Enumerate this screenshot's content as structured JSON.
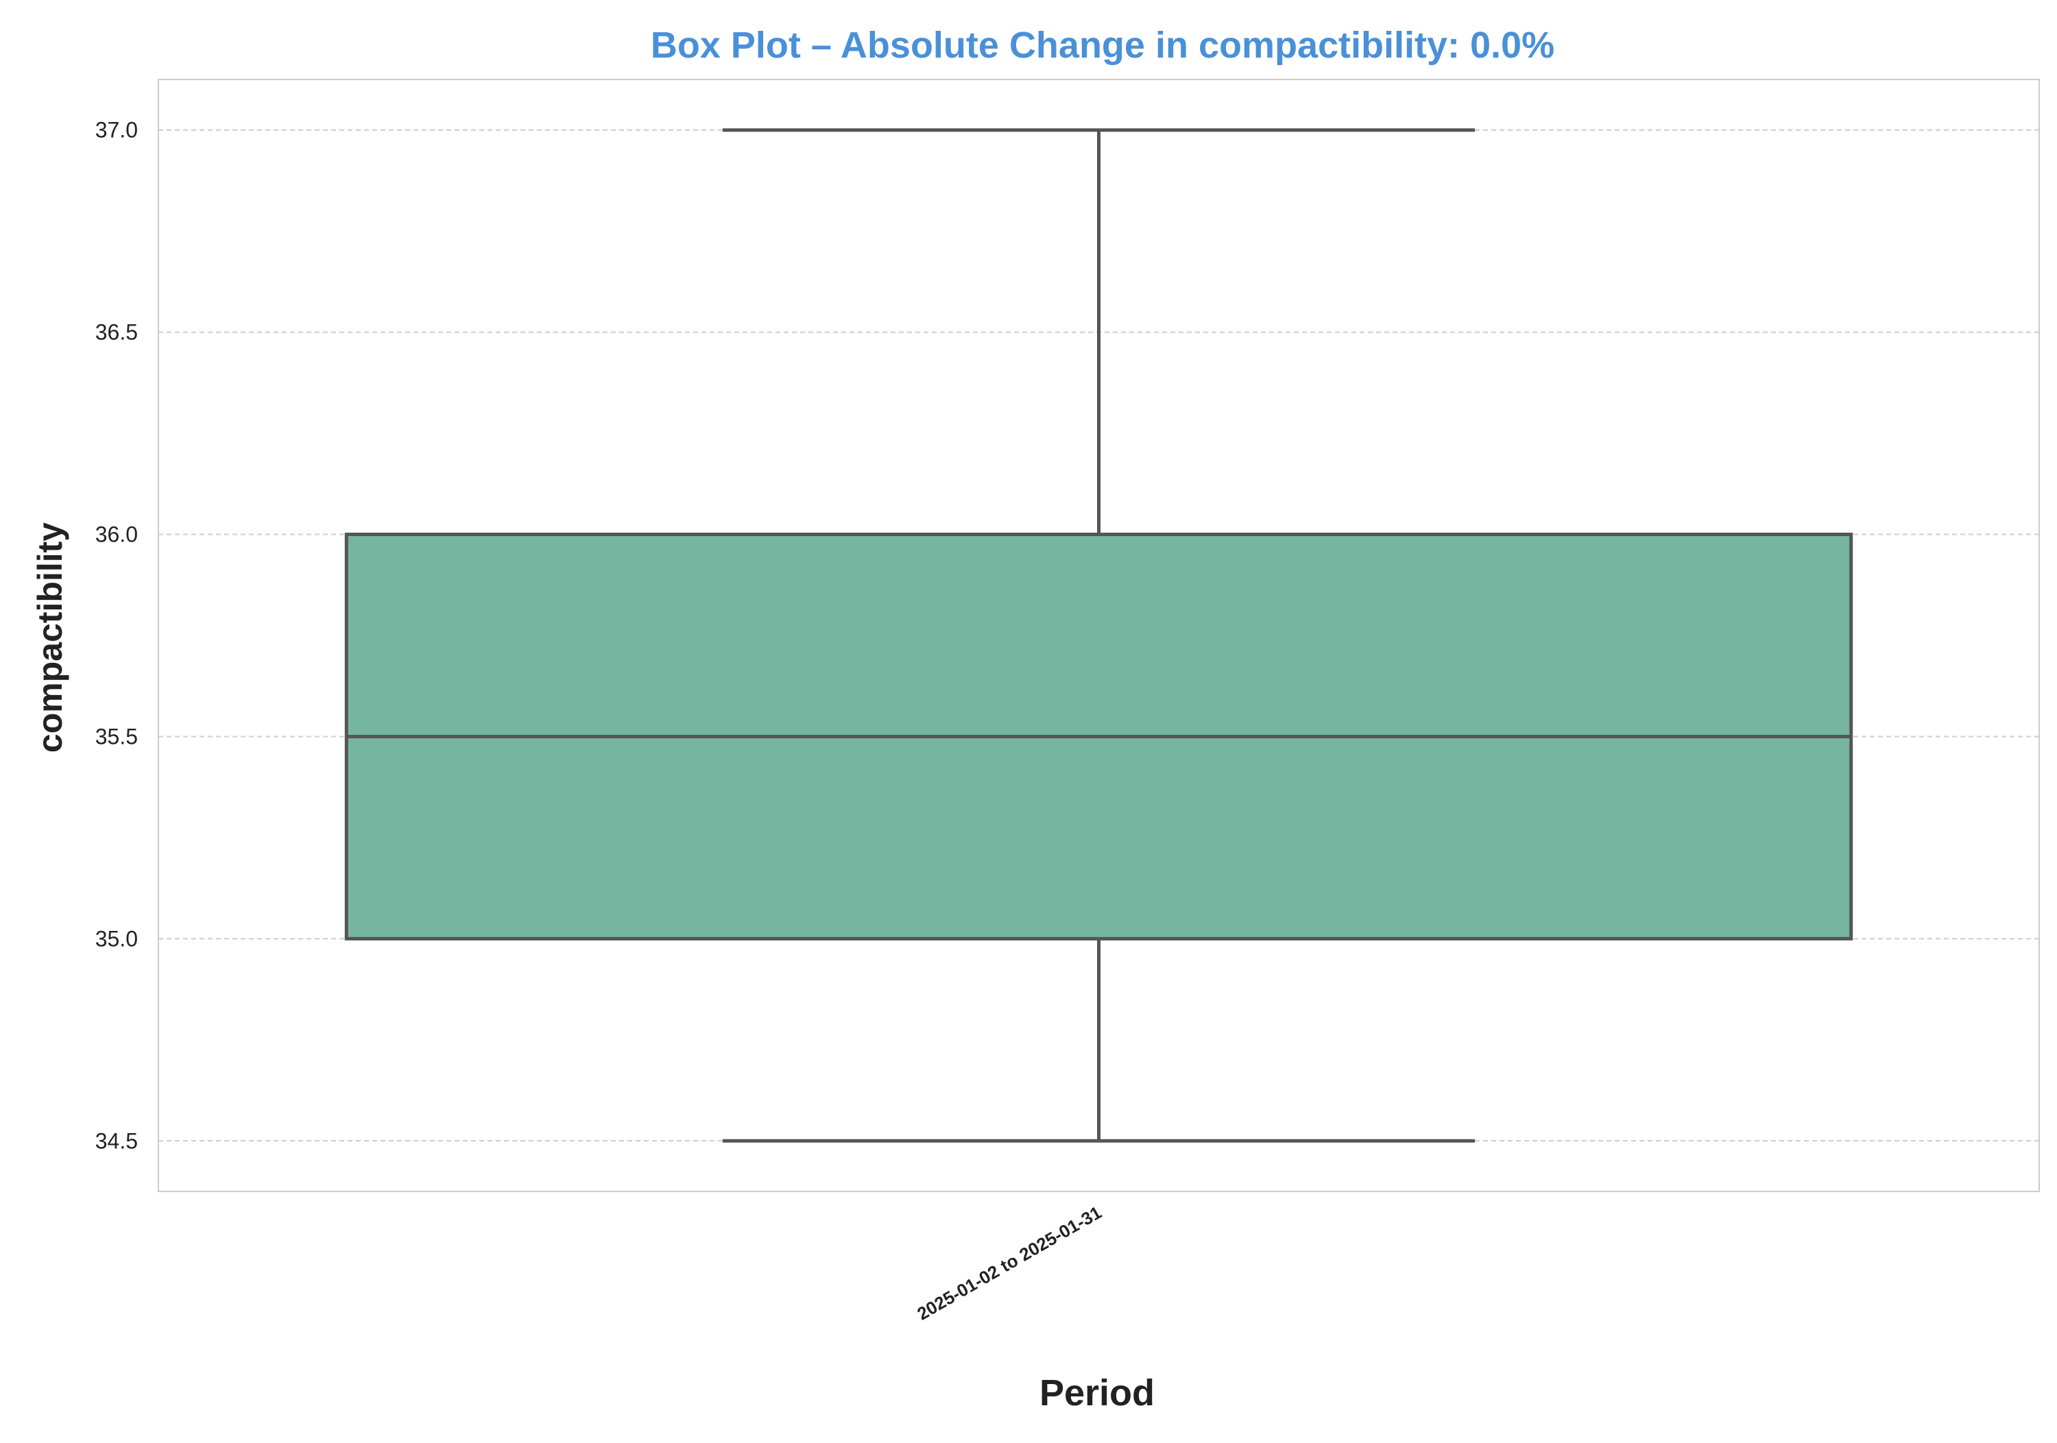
{
  "chart_data": {
    "type": "box",
    "title": "Box Plot – Absolute Change in compactibility: 0.0%",
    "xlabel": "Period",
    "ylabel": "compactibility",
    "categories": [
      "2025-01-02 to 2025-01-31"
    ],
    "boxes": [
      {
        "category": "2025-01-02 to 2025-01-31",
        "whisker_low": 34.5,
        "q1": 35.0,
        "median": 35.5,
        "q3": 36.0,
        "whisker_high": 37.0
      }
    ],
    "ylim": [
      34.375,
      37.125
    ],
    "yticks": [
      34.5,
      35.0,
      35.5,
      36.0,
      36.5,
      37.0
    ],
    "ytick_labels": [
      "34.5",
      "35.0",
      "35.5",
      "36.0",
      "36.5",
      "37.0"
    ],
    "grid": "y-dashed",
    "colors": {
      "title": "#4a90d9",
      "box_fill": "#76b5a0",
      "box_edge": "#555555",
      "grid": "#cccccc",
      "frame": "#cccccc",
      "text": "#222222"
    }
  }
}
